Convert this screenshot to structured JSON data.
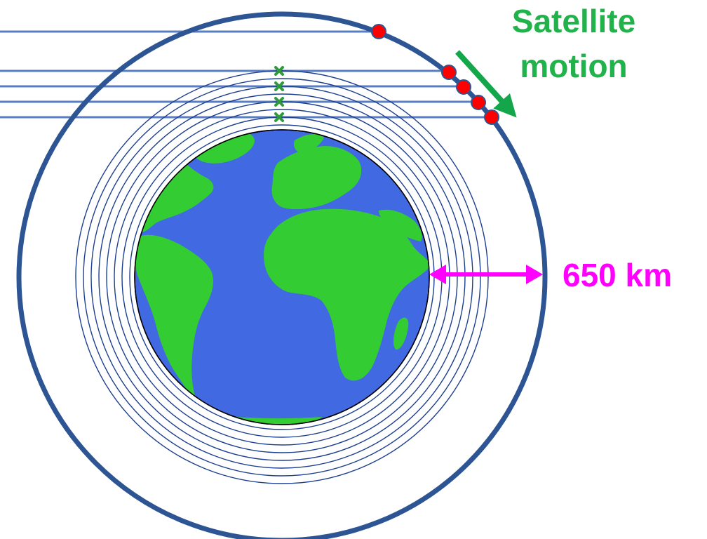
{
  "labels": {
    "motion_line1": "Satellite",
    "motion_line2": "motion",
    "distance": "650 km"
  },
  "colors": {
    "orbit": "#2d5594",
    "shell": "#1c3f8f",
    "ray": "#5a7ec4",
    "ocean": "#4169e1",
    "land": "#33cc33",
    "satellite": "#ff0000",
    "tangent_point": "#2e9a3a",
    "motion_text": "#22b24c",
    "motion_arrow": "#14a64a",
    "distance": "#ff00ff"
  }
}
